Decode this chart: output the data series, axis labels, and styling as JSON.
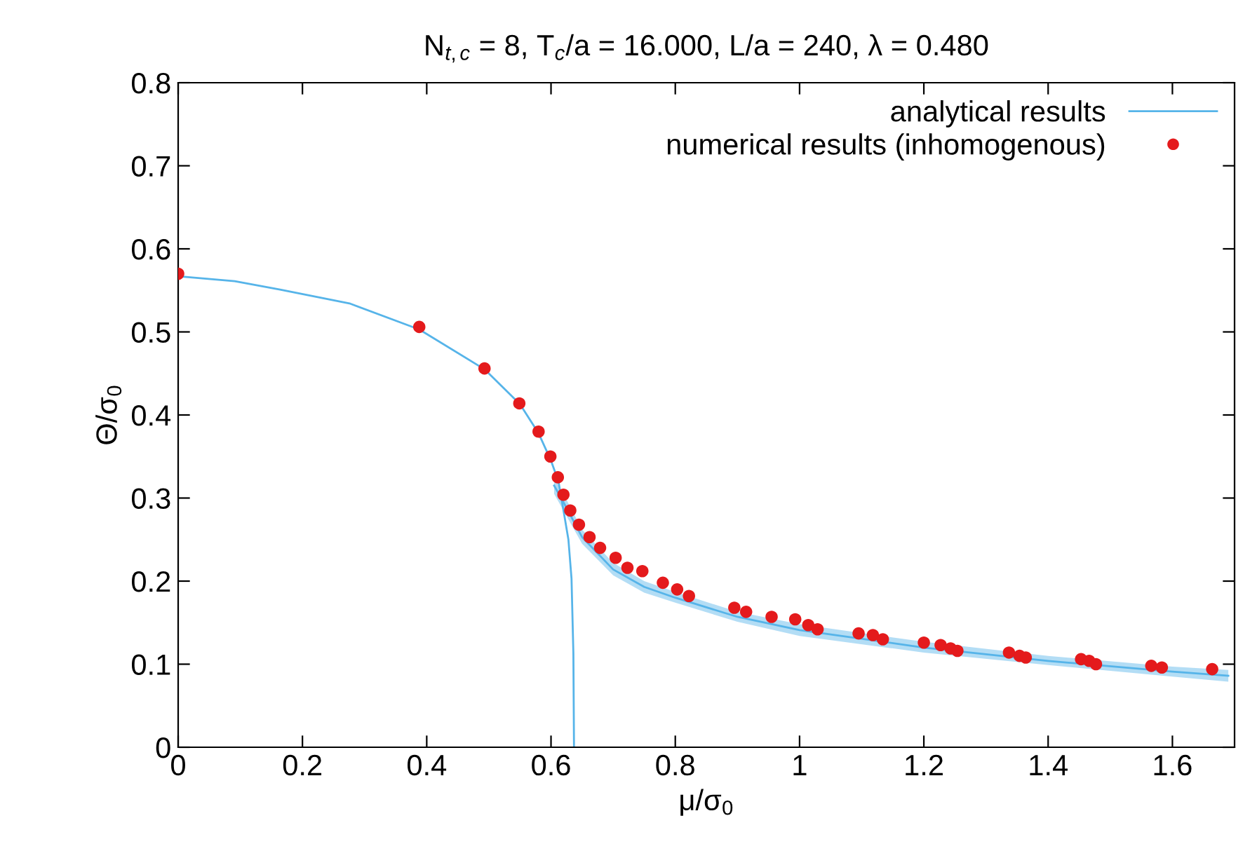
{
  "chart_data": {
    "type": "line",
    "title": "N$_{t,c}$ = 8, T$_{c}$/a = 16.000, L/a = 240, λ = 0.480",
    "xlabel": "μ/σ$_{0}$",
    "ylabel": "Θ/σ$_{0}$",
    "xlim": [
      0,
      1.7
    ],
    "ylim": [
      0,
      0.8
    ],
    "xticks": [
      0,
      0.2,
      0.4,
      0.6,
      0.8,
      1,
      1.2,
      1.4,
      1.6
    ],
    "yticks": [
      0,
      0.1,
      0.2,
      0.3,
      0.4,
      0.5,
      0.6,
      0.7,
      0.8
    ],
    "grid": false,
    "legend": "top right",
    "series": [
      {
        "name": "analytical results",
        "color": "#56b4e9",
        "marker": "none",
        "x": [
          0,
          0.091,
          0.164,
          0.277,
          0.388,
          0.493,
          0.55,
          0.58,
          0.6,
          0.612,
          0.621,
          0.628,
          0.633,
          0.636,
          0.637
        ],
        "values": [
          0.567,
          0.561,
          0.551,
          0.534,
          0.503,
          0.455,
          0.413,
          0.378,
          0.345,
          0.32,
          0.281,
          0.25,
          0.203,
          0.113,
          0
        ]
      },
      {
        "color": "#56b4e9",
        "marker": "none",
        "x": [
          0.605,
          0.62,
          0.65,
          0.7,
          0.75,
          0.8,
          0.9,
          1.0,
          1.2,
          1.4,
          1.6,
          1.69
        ],
        "values": [
          0.315,
          0.295,
          0.253,
          0.214,
          0.193,
          0.18,
          0.157,
          0.141,
          0.12,
          0.104,
          0.091,
          0.086
        ],
        "lower": [
          0.305,
          0.285,
          0.245,
          0.207,
          0.186,
          0.174,
          0.151,
          0.134,
          0.114,
          0.099,
          0.085,
          0.079
        ],
        "upper": [
          0.325,
          0.305,
          0.262,
          0.222,
          0.2,
          0.187,
          0.163,
          0.148,
          0.127,
          0.11,
          0.097,
          0.093
        ]
      },
      {
        "name": "numerical results (inhomogenous)",
        "type": "scatter",
        "color": "#e41a1c",
        "marker": "circle",
        "x": [
          0,
          0.388,
          0.493,
          0.549,
          0.58,
          0.599,
          0.611,
          0.62,
          0.631,
          0.645,
          0.662,
          0.679,
          0.704,
          0.723,
          0.747,
          0.78,
          0.803,
          0.822,
          0.895,
          0.914,
          0.955,
          0.993,
          1.014,
          1.029,
          1.095,
          1.118,
          1.134,
          1.2,
          1.227,
          1.243,
          1.254,
          1.337,
          1.354,
          1.364,
          1.453,
          1.466,
          1.477,
          1.566,
          1.583,
          1.664
        ],
        "values": [
          0.57,
          0.506,
          0.456,
          0.414,
          0.38,
          0.35,
          0.325,
          0.304,
          0.285,
          0.268,
          0.253,
          0.24,
          0.228,
          0.216,
          0.212,
          0.198,
          0.19,
          0.182,
          0.168,
          0.163,
          0.157,
          0.154,
          0.147,
          0.142,
          0.137,
          0.135,
          0.13,
          0.126,
          0.123,
          0.119,
          0.116,
          0.114,
          0.11,
          0.108,
          0.106,
          0.104,
          0.1,
          0.098,
          0.096,
          0.094
        ]
      }
    ]
  }
}
